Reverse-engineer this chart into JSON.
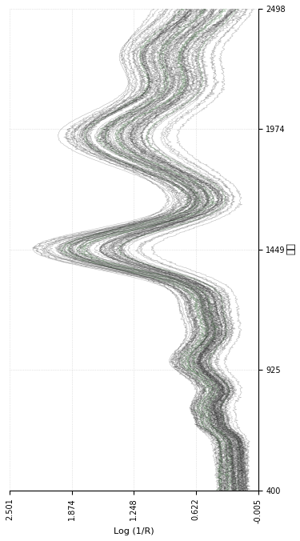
{
  "x_label": "波长",
  "y_label": "Log (1/R)",
  "x_ticks": [
    400,
    925,
    1449,
    1974,
    2498
  ],
  "y_ticks": [
    -0.005,
    0.622,
    1.248,
    1.874,
    2.501
  ],
  "x_min": 400,
  "x_max": 2498,
  "y_min": -0.005,
  "y_max": 2.501,
  "line_color_dark": "#333333",
  "line_color_light": "#999999",
  "line_color_green": "#88aa88",
  "bg_color": "#ffffff",
  "grid_color": "#cccccc",
  "n_spectra": 80,
  "figsize": [
    3.75,
    6.76
  ],
  "dpi": 100
}
